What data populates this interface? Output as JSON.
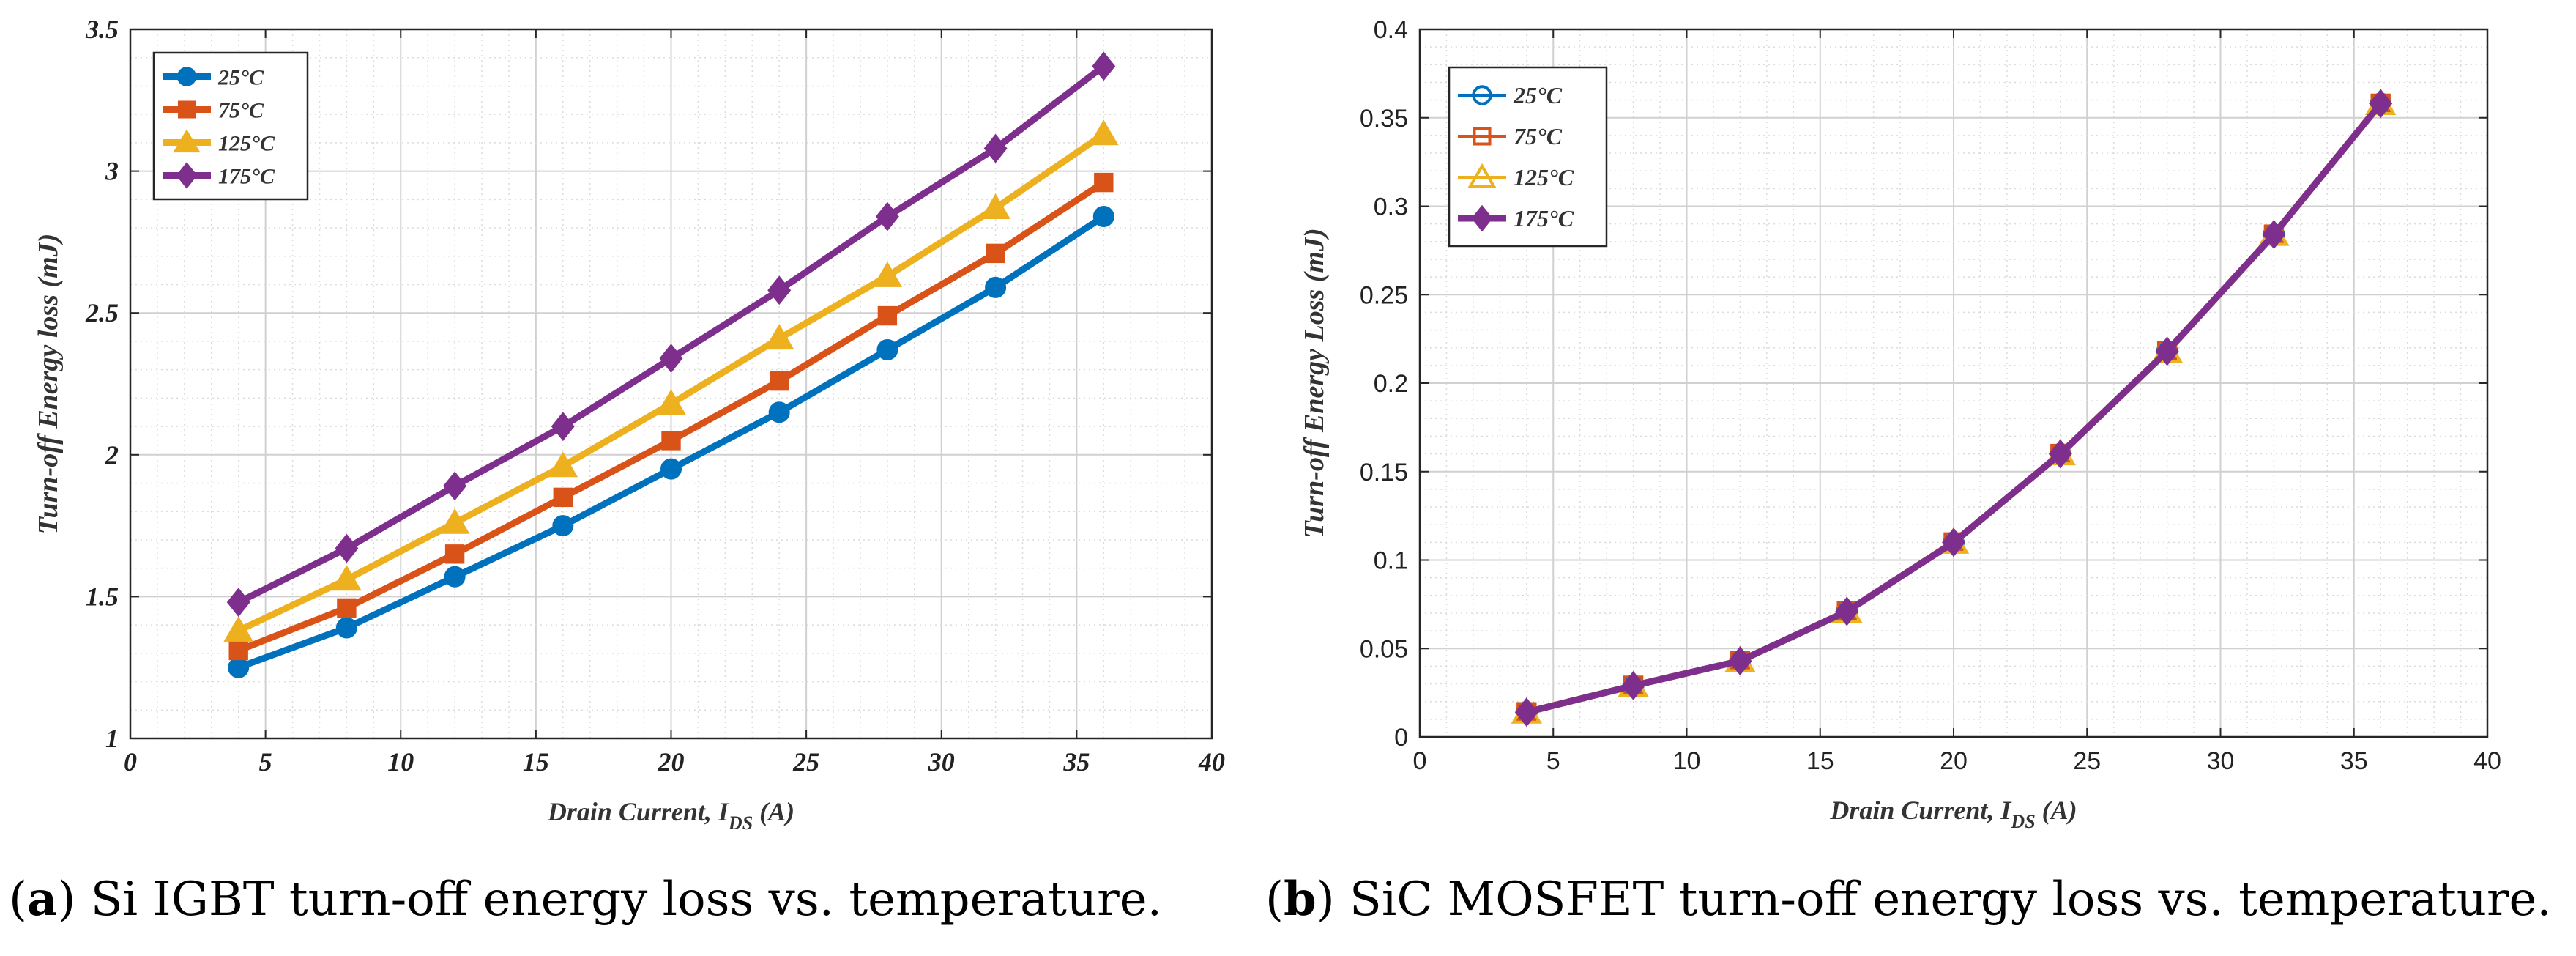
{
  "captions": {
    "a": {
      "letter": "a",
      "text": " Si IGBT turn-off energy loss vs. temperature."
    },
    "b": {
      "letter": "b",
      "text": " SiC MOSFET turn-off energy loss vs. temperature."
    }
  },
  "chart_data": [
    {
      "id": "a",
      "type": "line",
      "xlabel": "Drain Current, I",
      "xlabel_sub": "DS",
      "xlabel_suffix": " (A)",
      "ylabel": "Turn-off Energy loss (mJ)",
      "xlim": [
        0,
        40
      ],
      "ylim": [
        1,
        3.5
      ],
      "xticks": [
        0,
        5,
        10,
        15,
        20,
        25,
        30,
        35,
        40
      ],
      "yticks": [
        1,
        1.5,
        2,
        2.5,
        3,
        3.5
      ],
      "ytick_labels": [
        "1",
        "1.5",
        "2",
        "2.5",
        "3",
        "3.5"
      ],
      "grid": true,
      "legend_position": "top-left",
      "x": [
        4,
        8,
        12,
        16,
        20,
        24,
        28,
        32,
        36
      ],
      "series": [
        {
          "name": "25°C",
          "color": "#0072BD",
          "marker": "circle",
          "filled": true,
          "values": [
            1.25,
            1.39,
            1.57,
            1.75,
            1.95,
            2.15,
            2.37,
            2.59,
            2.84
          ]
        },
        {
          "name": "75°C",
          "color": "#D95319",
          "marker": "square",
          "filled": true,
          "values": [
            1.31,
            1.46,
            1.65,
            1.85,
            2.05,
            2.26,
            2.49,
            2.71,
            2.96
          ]
        },
        {
          "name": "125°C",
          "color": "#EDB120",
          "marker": "triangle",
          "filled": true,
          "values": [
            1.38,
            1.56,
            1.76,
            1.96,
            2.18,
            2.41,
            2.63,
            2.87,
            3.13
          ]
        },
        {
          "name": "175°C",
          "color": "#7E2F8E",
          "marker": "diamond",
          "filled": true,
          "values": [
            1.48,
            1.67,
            1.89,
            2.1,
            2.34,
            2.58,
            2.84,
            3.08,
            3.37
          ]
        }
      ]
    },
    {
      "id": "b",
      "type": "line",
      "xlabel": "Drain Current, I",
      "xlabel_sub": "DS",
      "xlabel_suffix": " (A)",
      "ylabel": "Turn-off Energy Loss (mJ)",
      "xlim": [
        0,
        40
      ],
      "ylim": [
        0,
        0.4
      ],
      "xticks": [
        0,
        5,
        10,
        15,
        20,
        25,
        30,
        35,
        40
      ],
      "yticks": [
        0,
        0.05,
        0.1,
        0.15,
        0.2,
        0.25,
        0.3,
        0.35,
        0.4
      ],
      "ytick_labels": [
        "0",
        "0.05",
        "0.1",
        "0.15",
        "0.2",
        "0.25",
        "0.3",
        "0.35",
        "0.4"
      ],
      "grid": true,
      "legend_position": "top-left",
      "x": [
        4,
        8,
        12,
        16,
        20,
        24,
        28,
        32,
        36
      ],
      "series": [
        {
          "name": "25°C",
          "color": "#0072BD",
          "marker": "circle",
          "filled": false,
          "values": [
            0.014,
            0.029,
            0.043,
            0.071,
            0.11,
            0.16,
            0.218,
            0.284,
            0.358
          ]
        },
        {
          "name": "75°C",
          "color": "#D95319",
          "marker": "square",
          "filled": false,
          "values": [
            0.014,
            0.029,
            0.043,
            0.071,
            0.11,
            0.16,
            0.218,
            0.284,
            0.358
          ]
        },
        {
          "name": "125°C",
          "color": "#EDB120",
          "marker": "triangle",
          "filled": false,
          "values": [
            0.014,
            0.029,
            0.043,
            0.071,
            0.11,
            0.16,
            0.218,
            0.284,
            0.358
          ]
        },
        {
          "name": "175°C",
          "color": "#7E2F8E",
          "marker": "diamond",
          "filled": true,
          "values": [
            0.014,
            0.029,
            0.043,
            0.071,
            0.11,
            0.16,
            0.218,
            0.284,
            0.358
          ]
        }
      ]
    }
  ]
}
